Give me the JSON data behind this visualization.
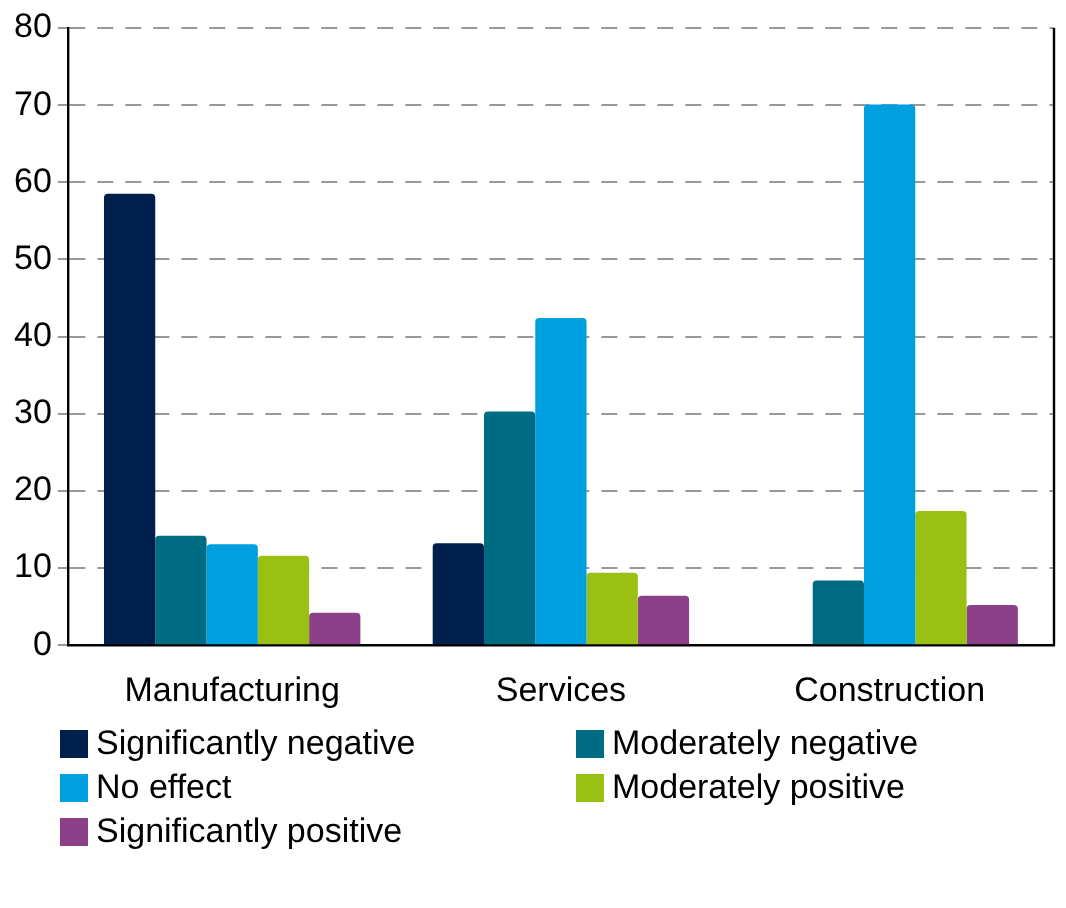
{
  "chart_data": {
    "type": "bar",
    "categories": [
      "Manufacturing",
      "Services",
      "Construction"
    ],
    "series": [
      {
        "name": "Significantly negative",
        "color": "#001f4b",
        "values": [
          58.5,
          13.2,
          0
        ]
      },
      {
        "name": "Moderately negative",
        "color": "#006c84",
        "values": [
          14.2,
          30.3,
          8.4
        ]
      },
      {
        "name": "No effect",
        "color": "#009fe0",
        "values": [
          13.1,
          42.4,
          70.1
        ]
      },
      {
        "name": "Moderately positive",
        "color": "#99c013",
        "values": [
          11.6,
          9.4,
          17.4
        ]
      },
      {
        "name": "Significantly positive",
        "color": "#8c4088",
        "values": [
          4.2,
          6.4,
          5.2
        ]
      }
    ],
    "ylim": [
      0,
      80
    ],
    "yticks": [
      0,
      10,
      20,
      30,
      40,
      50,
      60,
      70,
      80
    ],
    "grid": "y",
    "legend": "bottom"
  }
}
